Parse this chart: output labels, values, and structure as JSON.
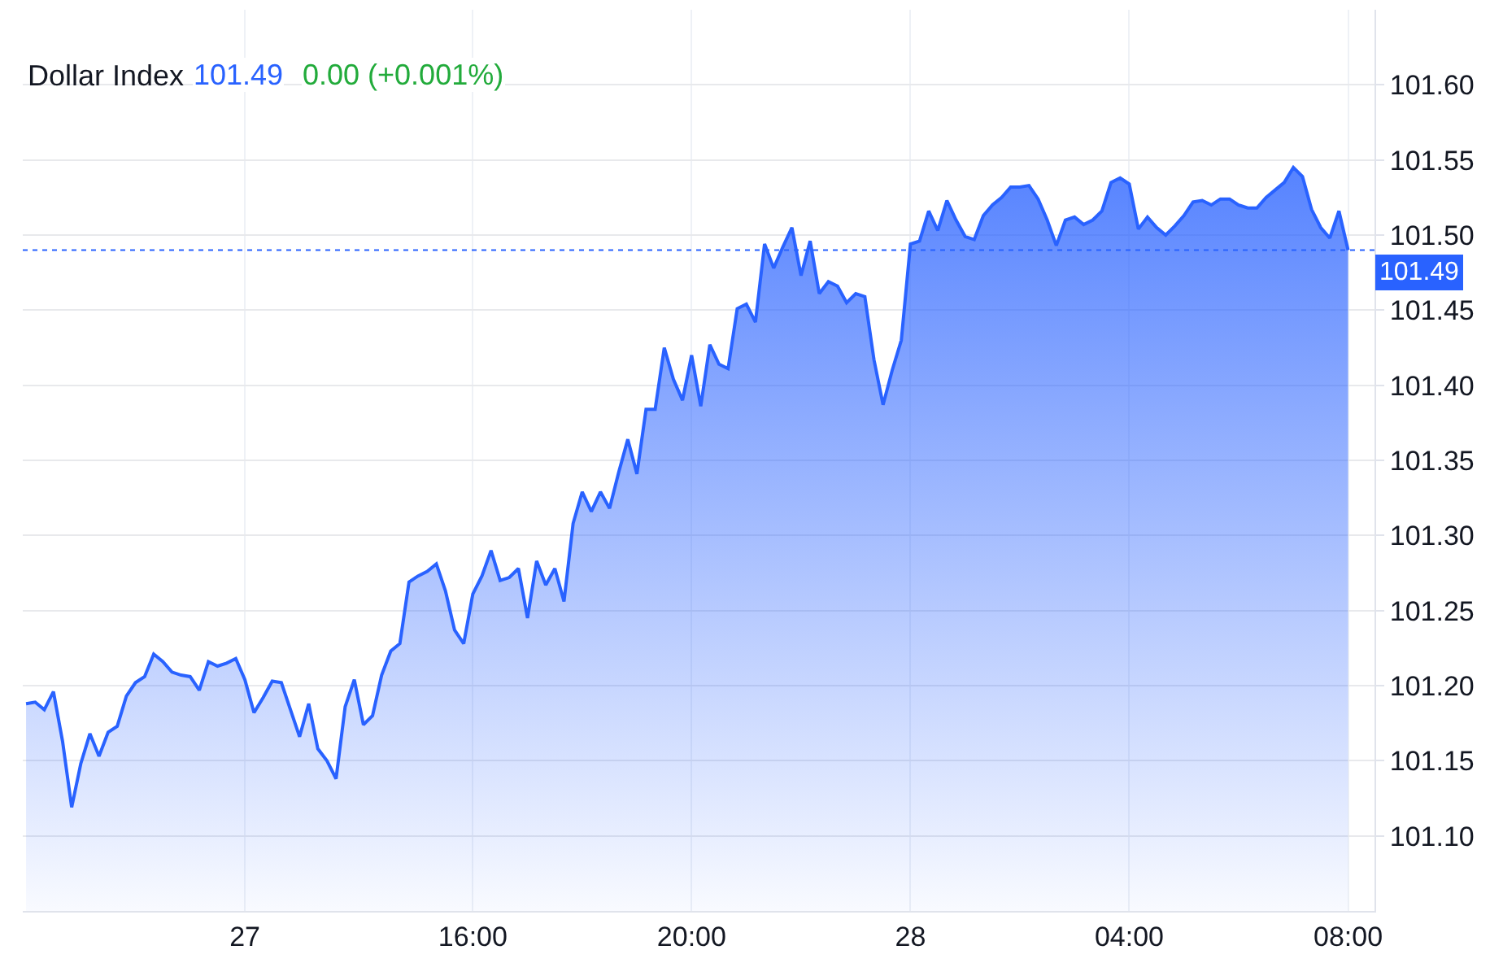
{
  "chart_data": {
    "type": "area",
    "title": "Dollar Index",
    "annotations": [
      "101.49",
      "0.00 (+0.001%)"
    ],
    "categories": [
      null,
      null,
      null,
      null,
      null,
      null,
      null,
      null,
      null,
      null,
      null,
      null,
      null,
      null,
      null,
      null,
      null,
      null,
      null,
      null,
      null,
      null,
      null,
      null,
      "27",
      null,
      null,
      null,
      null,
      null,
      null,
      null,
      null,
      null,
      null,
      null,
      null,
      null,
      null,
      null,
      null,
      null,
      null,
      null,
      null,
      null,
      null,
      null,
      null,
      "16:00",
      null,
      null,
      null,
      null,
      null,
      null,
      null,
      null,
      null,
      null,
      null,
      null,
      null,
      null,
      null,
      null,
      null,
      null,
      null,
      null,
      null,
      null,
      null,
      "20:00",
      null,
      null,
      null,
      null,
      null,
      null,
      null,
      null,
      null,
      null,
      null,
      null,
      null,
      null,
      null,
      null,
      null,
      null,
      null,
      null,
      null,
      null,
      null,
      "28",
      null,
      null,
      null,
      null,
      null,
      null,
      null,
      null,
      null,
      null,
      null,
      null,
      null,
      null,
      null,
      null,
      null,
      null,
      null,
      null,
      null,
      null,
      null,
      "04:00",
      null,
      null,
      null,
      null,
      null,
      null,
      null,
      null,
      null,
      null,
      null,
      null,
      null,
      null,
      null,
      null,
      null,
      null,
      null,
      null,
      null,
      null,
      null,
      "08:00"
    ],
    "series": [
      {
        "color": "#2962ff",
        "values": [
          101.188,
          101.189,
          101.184,
          101.196,
          101.163,
          101.119,
          101.148,
          101.168,
          101.153,
          101.169,
          101.173,
          101.193,
          101.202,
          101.206,
          101.221,
          101.216,
          101.209,
          101.207,
          101.206,
          101.197,
          101.216,
          101.213,
          101.215,
          101.218,
          101.204,
          101.182,
          101.192,
          101.203,
          101.202,
          101.184,
          101.166,
          101.188,
          101.158,
          101.15,
          101.138,
          101.186,
          101.204,
          101.174,
          101.18,
          101.207,
          101.223,
          101.228,
          101.269,
          101.273,
          101.276,
          101.281,
          101.263,
          101.237,
          101.228,
          101.261,
          101.273,
          101.29,
          101.27,
          101.272,
          101.278,
          101.245,
          101.283,
          101.267,
          101.278,
          101.256,
          101.308,
          101.329,
          101.316,
          101.329,
          101.318,
          101.342,
          101.364,
          101.341,
          101.384,
          101.384,
          101.425,
          101.404,
          101.39,
          101.42,
          101.386,
          101.427,
          101.414,
          101.411,
          101.451,
          101.454,
          101.442,
          101.494,
          101.478,
          101.492,
          101.505,
          101.473,
          101.496,
          101.461,
          101.469,
          101.466,
          101.455,
          101.461,
          101.459,
          101.417,
          101.387,
          101.41,
          101.43,
          101.494,
          101.496,
          101.516,
          101.503,
          101.523,
          101.51,
          101.499,
          101.497,
          101.513,
          101.52,
          101.525,
          101.532,
          101.532,
          101.533,
          101.524,
          101.51,
          101.493,
          101.51,
          101.512,
          101.507,
          101.51,
          101.516,
          101.535,
          101.538,
          101.534,
          101.504,
          101.512,
          101.505,
          101.5,
          101.506,
          101.513,
          101.522,
          101.523,
          101.52,
          101.524,
          101.524,
          101.52,
          101.518,
          101.518,
          101.525,
          101.53,
          101.535,
          101.545,
          101.539,
          101.517,
          101.505,
          101.498,
          101.516,
          101.49
        ]
      }
    ],
    "ylim": [
      101.05,
      101.65
    ],
    "yticks": [
      {
        "value": 101.1,
        "label": "101.10"
      },
      101.15,
      {
        "value": 101.2,
        "label": "101.20"
      },
      101.25,
      {
        "value": 101.3,
        "label": "101.30"
      },
      101.35,
      {
        "value": 101.4,
        "label": "101.40"
      },
      101.45,
      {
        "value": 101.5,
        "label": "101.50"
      },
      101.55,
      {
        "value": 101.6,
        "label": "101.60"
      }
    ],
    "ref_lines": [
      {
        "axis": "y",
        "value": 101.49,
        "label": "101.49",
        "color": "#2962ff",
        "line_style": "dotted"
      }
    ],
    "grid": true
  }
}
